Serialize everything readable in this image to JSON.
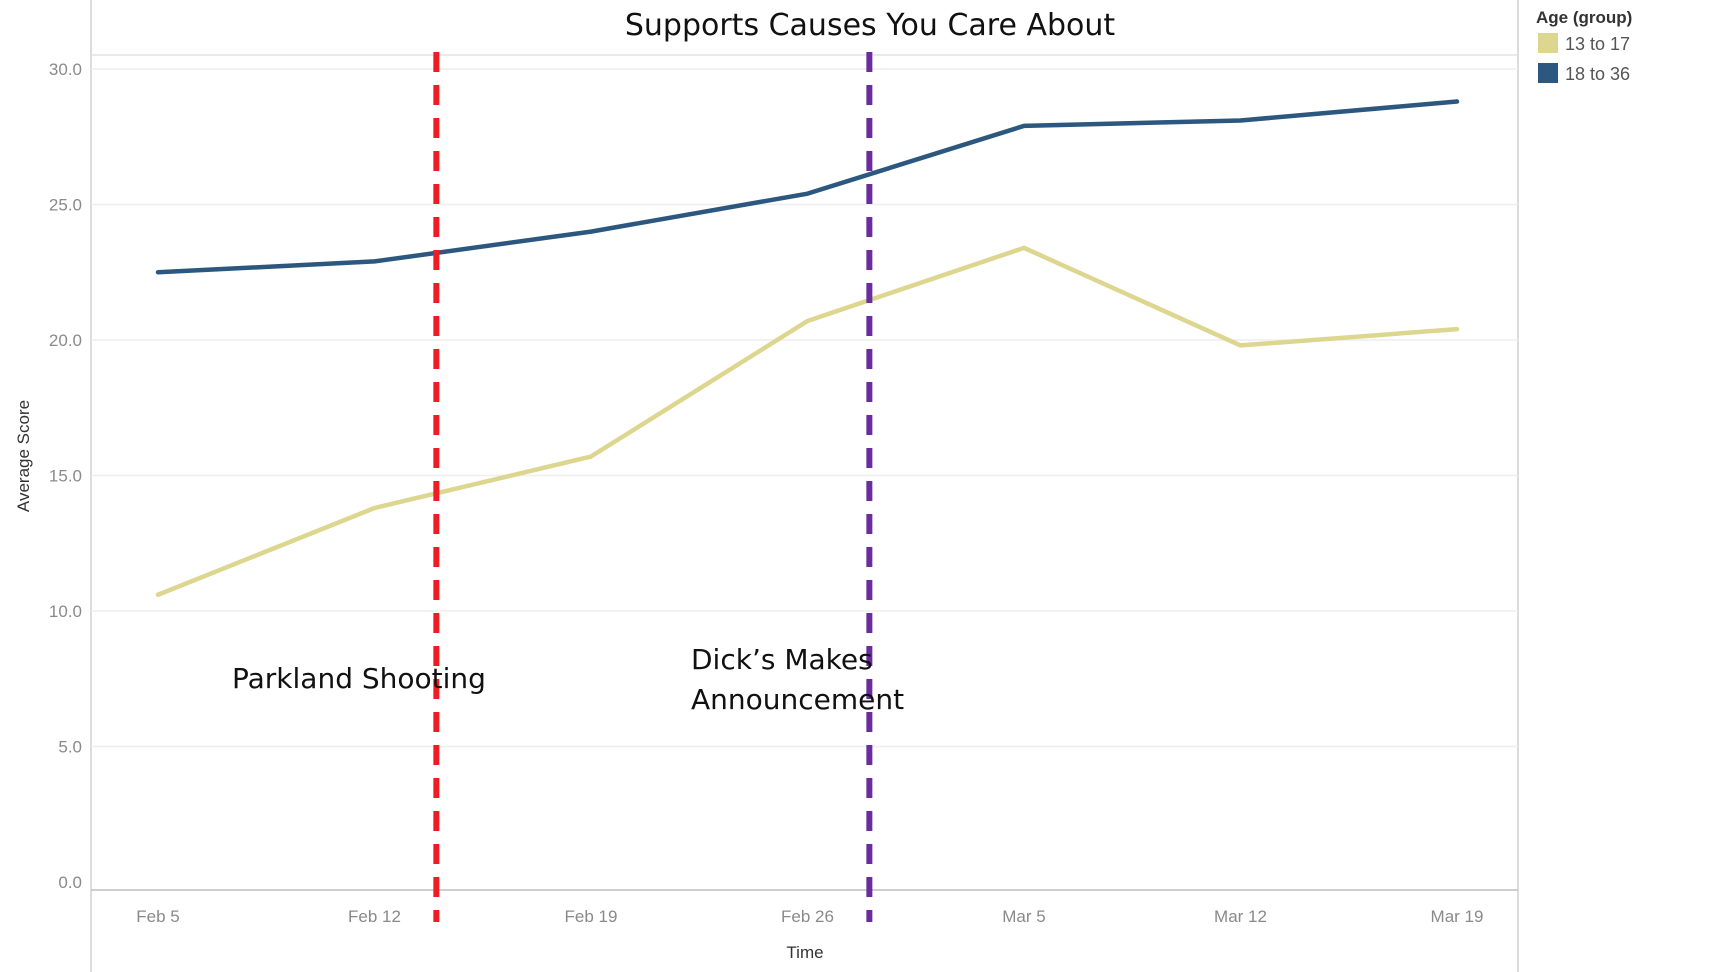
{
  "chart_data": {
    "type": "line",
    "title": "Supports Causes You Care About",
    "xlabel": "Time",
    "ylabel": "Average Score",
    "ylim": [
      0,
      30
    ],
    "yticks": [
      "0.0",
      "5.0",
      "10.0",
      "15.0",
      "20.0",
      "25.0",
      "30.0"
    ],
    "categories": [
      "Feb 5",
      "Feb 12",
      "Feb 19",
      "Feb 26",
      "Mar 5",
      "Mar 12",
      "Mar 19"
    ],
    "grid": true,
    "legend": {
      "title": "Age (group)",
      "placement": "right"
    },
    "series": [
      {
        "name": "13 to 17",
        "color": "#dcd68f",
        "values": [
          10.6,
          13.8,
          15.7,
          20.7,
          23.4,
          19.8,
          20.4
        ]
      },
      {
        "name": "18 to 36",
        "color": "#2c577f",
        "values": [
          22.5,
          22.9,
          24.0,
          25.4,
          27.9,
          28.1,
          28.8
        ]
      }
    ],
    "annotations": [
      {
        "label": "Parkland Shooting",
        "x_date": "Feb 14",
        "color": "#ee1c25"
      },
      {
        "label_line1": "Dick’s Makes",
        "label_line2": "Announcement",
        "x_date": "Feb 28",
        "color": "#6a2d9f"
      }
    ]
  }
}
